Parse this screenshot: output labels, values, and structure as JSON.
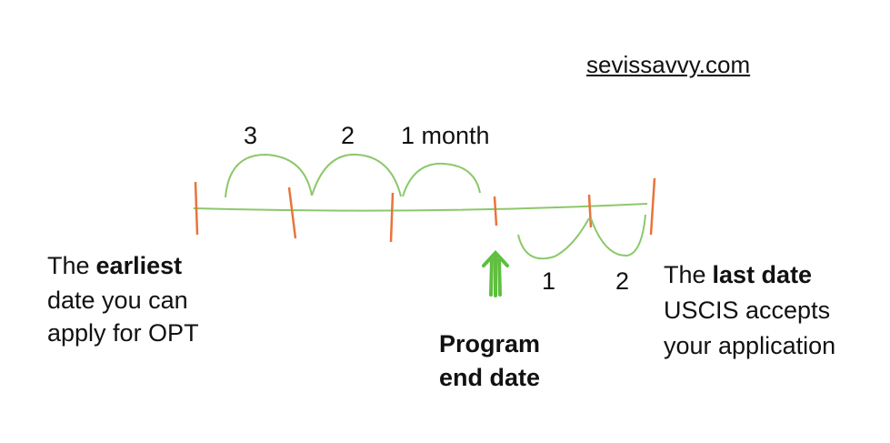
{
  "site": "sevissavvy.com",
  "months_before": [
    "3",
    "2",
    "1 month"
  ],
  "months_after": [
    "1",
    "2"
  ],
  "earliest": {
    "lead": "The",
    "bold": "earliest",
    "lines": [
      "date you can",
      "apply for OPT"
    ]
  },
  "program_end": [
    "Program",
    "end date"
  ],
  "last_date": {
    "lead": "The",
    "bold": "last date",
    "lines": [
      "USCIS accepts",
      "your application"
    ]
  }
}
